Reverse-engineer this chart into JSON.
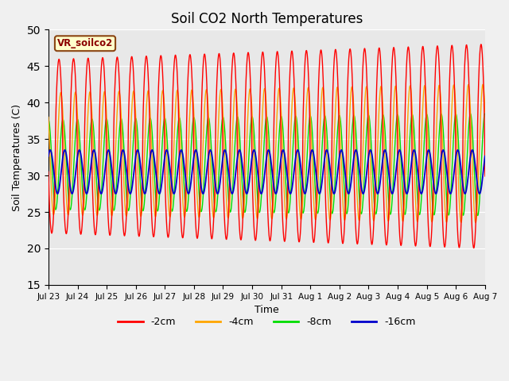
{
  "title": "Soil CO2 North Temperatures",
  "xlabel": "Time",
  "ylabel": "Soil Temperatures (C)",
  "ylim": [
    15,
    50
  ],
  "yticks": [
    15,
    20,
    25,
    30,
    35,
    40,
    45,
    50
  ],
  "annotation_text": "VR_soilco2",
  "legend_labels": [
    "-2cm",
    "-4cm",
    "-8cm",
    "-16cm"
  ],
  "legend_colors": [
    "#ff0000",
    "#ffa500",
    "#00dd00",
    "#0000cc"
  ],
  "line_colors": [
    "#ff0000",
    "#ffa500",
    "#00dd00",
    "#0000cc"
  ],
  "background_color": "#f0f0f0",
  "plot_bg_color": "#e8e8e8",
  "xtick_labels": [
    "Jul 23",
    "Jul 24",
    "Jul 25",
    "Jul 26",
    "Jul 27",
    "Jul 28",
    "Jul 29",
    "Jul 30",
    "Jul 31",
    "Aug 1",
    "Aug 2",
    "Aug 3",
    "Aug 4",
    "Aug 5",
    "Aug 6",
    "Aug 7"
  ],
  "n_days": 15,
  "samples_per_day": 200,
  "mean_2cm": 34.0,
  "amplitude_2cm": 14.0,
  "phase_2cm": 3.3,
  "mean_4cm": 33.0,
  "amplitude_4cm": 9.5,
  "phase_4cm": 2.5,
  "mean_8cm": 31.5,
  "amplitude_8cm": 7.0,
  "phase_8cm": 1.6,
  "mean_16cm": 30.5,
  "amplitude_16cm": 3.0,
  "phase_16cm": 0.8,
  "cycles_per_day": 2.0
}
